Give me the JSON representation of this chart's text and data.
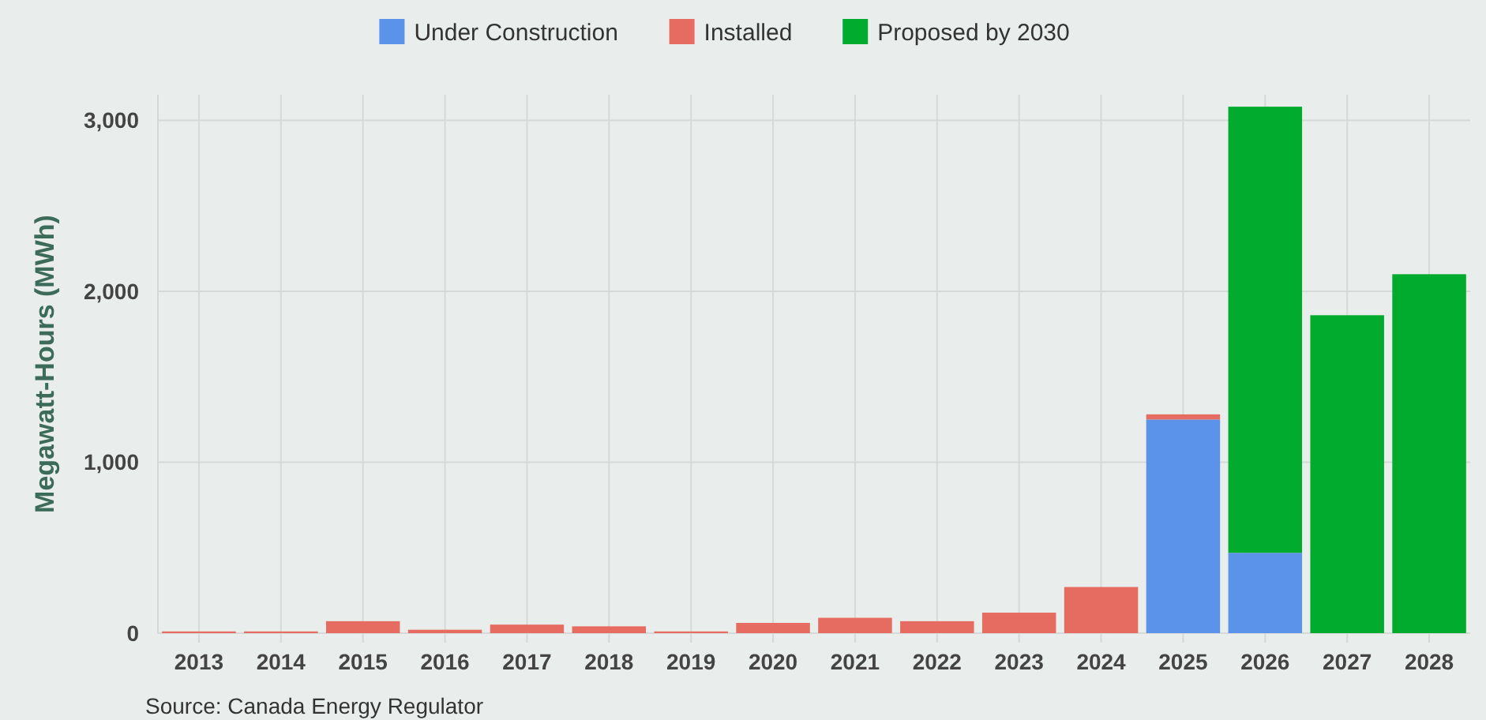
{
  "chart_data": {
    "type": "bar",
    "stacked": true,
    "ylabel": "Megawatt-Hours (MWh)",
    "categories": [
      "2013",
      "2014",
      "2015",
      "2016",
      "2017",
      "2018",
      "2019",
      "2020",
      "2021",
      "2022",
      "2023",
      "2024",
      "2025",
      "2026",
      "2027",
      "2028"
    ],
    "series": [
      {
        "name": "Under Construction",
        "color": "#5b93ea",
        "values": [
          0,
          0,
          0,
          0,
          0,
          0,
          0,
          0,
          0,
          0,
          0,
          0,
          1250,
          470,
          0,
          0
        ]
      },
      {
        "name": "Installed",
        "color": "#e66c62",
        "values": [
          10,
          10,
          70,
          20,
          50,
          40,
          10,
          60,
          90,
          70,
          120,
          270,
          30,
          0,
          0,
          0
        ]
      },
      {
        "name": "Proposed by 2030",
        "color": "#00ab2e",
        "values": [
          0,
          0,
          0,
          0,
          0,
          0,
          0,
          0,
          0,
          0,
          0,
          0,
          0,
          2610,
          1860,
          2100
        ]
      }
    ],
    "ylim": [
      0,
      3150
    ],
    "yticks": [
      {
        "value": 0,
        "label": "0"
      },
      {
        "value": 1000,
        "label": "1,000"
      },
      {
        "value": 2000,
        "label": "2,000"
      },
      {
        "value": 3000,
        "label": "3,000"
      }
    ],
    "grid": true,
    "legend": "top",
    "annotations": [
      "Source: Canada Energy Regulator"
    ]
  }
}
